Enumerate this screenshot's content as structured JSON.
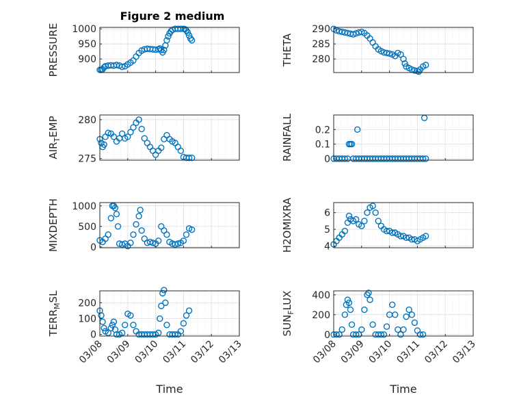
{
  "figure": {
    "title": "Figure 2 medium"
  },
  "chart_data": [
    {
      "type": "scatter",
      "title": "Figure 2 medium",
      "ylabel": "PRESSURE",
      "xlabel": "",
      "ylim": [
        855,
        1005
      ],
      "yticks": [
        900,
        950,
        1000
      ],
      "xlim": [
        0,
        5
      ],
      "xtick_labels": [
        "03/08",
        "03/09",
        "03/10",
        "03/11",
        "03/12",
        "03/13"
      ],
      "grid": true,
      "marker_color": "#0072BD",
      "values": [
        [
          0.0,
          864
        ],
        [
          0.05,
          864
        ],
        [
          0.1,
          866
        ],
        [
          0.15,
          872
        ],
        [
          0.2,
          876
        ],
        [
          0.3,
          878
        ],
        [
          0.4,
          879
        ],
        [
          0.5,
          878
        ],
        [
          0.6,
          880
        ],
        [
          0.7,
          878
        ],
        [
          0.8,
          874
        ],
        [
          0.9,
          876
        ],
        [
          1.0,
          882
        ],
        [
          1.1,
          888
        ],
        [
          1.2,
          895
        ],
        [
          1.3,
          908
        ],
        [
          1.4,
          920
        ],
        [
          1.5,
          928
        ],
        [
          1.6,
          932
        ],
        [
          1.7,
          934
        ],
        [
          1.8,
          933
        ],
        [
          1.9,
          932
        ],
        [
          2.0,
          931
        ],
        [
          2.1,
          932
        ],
        [
          2.15,
          935
        ],
        [
          2.2,
          930
        ],
        [
          2.25,
          922
        ],
        [
          2.3,
          930
        ],
        [
          2.35,
          945
        ],
        [
          2.4,
          962
        ],
        [
          2.45,
          975
        ],
        [
          2.5,
          985
        ],
        [
          2.55,
          992
        ],
        [
          2.6,
          997
        ],
        [
          2.7,
          1000
        ],
        [
          2.8,
          1000
        ],
        [
          2.9,
          1000
        ],
        [
          3.0,
          1000
        ],
        [
          3.05,
          999
        ],
        [
          3.1,
          995
        ],
        [
          3.15,
          988
        ],
        [
          3.2,
          978
        ],
        [
          3.25,
          968
        ],
        [
          3.3,
          962
        ]
      ]
    },
    {
      "type": "scatter",
      "ylabel": "THETA",
      "xlabel": "",
      "ylim": [
        275.5,
        290.5
      ],
      "yticks": [
        280,
        285,
        290
      ],
      "xlim": [
        0,
        5
      ],
      "xtick_labels": [
        "03/08",
        "03/09",
        "03/10",
        "03/11",
        "03/12",
        "03/13"
      ],
      "grid": true,
      "marker_color": "#0072BD",
      "values": [
        [
          0.0,
          290
        ],
        [
          0.1,
          289.5
        ],
        [
          0.2,
          289.2
        ],
        [
          0.3,
          289
        ],
        [
          0.4,
          288.8
        ],
        [
          0.5,
          288.6
        ],
        [
          0.6,
          288.4
        ],
        [
          0.7,
          288.2
        ],
        [
          0.8,
          288.5
        ],
        [
          0.9,
          288.8
        ],
        [
          1.0,
          289
        ],
        [
          1.1,
          288.6
        ],
        [
          1.2,
          287.8
        ],
        [
          1.3,
          286.8
        ],
        [
          1.4,
          285.5
        ],
        [
          1.5,
          284.2
        ],
        [
          1.6,
          283.2
        ],
        [
          1.7,
          282.6
        ],
        [
          1.8,
          282.2
        ],
        [
          1.9,
          282
        ],
        [
          2.0,
          281.8
        ],
        [
          2.1,
          281.5
        ],
        [
          2.2,
          281
        ],
        [
          2.3,
          282
        ],
        [
          2.4,
          281.5
        ],
        [
          2.5,
          280
        ],
        [
          2.55,
          278.5
        ],
        [
          2.6,
          277.5
        ],
        [
          2.7,
          277
        ],
        [
          2.8,
          276.5
        ],
        [
          2.9,
          276.2
        ],
        [
          3.0,
          276
        ],
        [
          3.05,
          275.8
        ],
        [
          3.1,
          276.5
        ],
        [
          3.2,
          277.5
        ],
        [
          3.3,
          278
        ]
      ]
    },
    {
      "type": "scatter",
      "ylabel": "AIR_TEMP",
      "xlabel": "",
      "ylim": [
        274.8,
        280.6
      ],
      "yticks": [
        275,
        280
      ],
      "xlim": [
        0,
        5
      ],
      "xtick_labels": [
        "03/08",
        "03/09",
        "03/10",
        "03/11",
        "03/12",
        "03/13"
      ],
      "grid": true,
      "marker_color": "#0072BD",
      "values": [
        [
          0.0,
          277.5
        ],
        [
          0.05,
          277
        ],
        [
          0.1,
          276.5
        ],
        [
          0.15,
          276.8
        ],
        [
          0.2,
          277.8
        ],
        [
          0.3,
          278.3
        ],
        [
          0.4,
          278.2
        ],
        [
          0.5,
          277.8
        ],
        [
          0.6,
          277.2
        ],
        [
          0.7,
          277.6
        ],
        [
          0.8,
          278.2
        ],
        [
          0.9,
          277.6
        ],
        [
          1.0,
          277.8
        ],
        [
          1.1,
          278.4
        ],
        [
          1.2,
          279
        ],
        [
          1.3,
          279.6
        ],
        [
          1.4,
          280
        ],
        [
          1.5,
          278.8
        ],
        [
          1.6,
          277.6
        ],
        [
          1.7,
          277
        ],
        [
          1.8,
          276.5
        ],
        [
          1.9,
          276
        ],
        [
          2.0,
          275.5
        ],
        [
          2.1,
          276
        ],
        [
          2.2,
          276.4
        ],
        [
          2.3,
          277.5
        ],
        [
          2.4,
          278
        ],
        [
          2.5,
          277.5
        ],
        [
          2.6,
          277.2
        ],
        [
          2.7,
          277
        ],
        [
          2.8,
          276.5
        ],
        [
          2.9,
          276
        ],
        [
          3.0,
          275.2
        ],
        [
          3.1,
          275.1
        ],
        [
          3.2,
          275.1
        ],
        [
          3.3,
          275.1
        ]
      ]
    },
    {
      "type": "scatter",
      "ylabel": "RAINFALL",
      "xlabel": "",
      "ylim": [
        -0.01,
        0.3
      ],
      "yticks": [
        0,
        0.1,
        0.2
      ],
      "xlim": [
        0,
        5
      ],
      "xtick_labels": [
        "03/08",
        "03/09",
        "03/10",
        "03/11",
        "03/12",
        "03/13"
      ],
      "grid": true,
      "marker_color": "#0072BD",
      "values": [
        [
          0.0,
          0
        ],
        [
          0.1,
          0
        ],
        [
          0.2,
          0
        ],
        [
          0.3,
          0
        ],
        [
          0.4,
          0
        ],
        [
          0.5,
          0
        ],
        [
          0.55,
          0.1
        ],
        [
          0.6,
          0.1
        ],
        [
          0.65,
          0.1
        ],
        [
          0.7,
          0
        ],
        [
          0.8,
          0
        ],
        [
          0.9,
          0
        ],
        [
          0.85,
          0.2
        ],
        [
          1.0,
          0
        ],
        [
          1.1,
          0
        ],
        [
          1.2,
          0
        ],
        [
          1.3,
          0
        ],
        [
          1.4,
          0
        ],
        [
          1.5,
          0
        ],
        [
          1.6,
          0
        ],
        [
          1.7,
          0
        ],
        [
          1.8,
          0
        ],
        [
          1.9,
          0
        ],
        [
          2.0,
          0
        ],
        [
          2.1,
          0
        ],
        [
          2.2,
          0
        ],
        [
          2.3,
          0
        ],
        [
          2.4,
          0
        ],
        [
          2.5,
          0
        ],
        [
          2.6,
          0
        ],
        [
          2.7,
          0
        ],
        [
          2.8,
          0
        ],
        [
          2.9,
          0
        ],
        [
          3.0,
          0
        ],
        [
          3.1,
          0
        ],
        [
          3.2,
          0
        ],
        [
          3.25,
          0.28
        ],
        [
          3.3,
          0
        ]
      ]
    },
    {
      "type": "scatter",
      "ylabel": "MIXDEPTH",
      "xlabel": "",
      "ylim": [
        -20,
        1080
      ],
      "yticks": [
        0,
        500,
        1000
      ],
      "xlim": [
        0,
        5
      ],
      "xtick_labels": [
        "03/08",
        "03/09",
        "03/10",
        "03/11",
        "03/12",
        "03/13"
      ],
      "grid": true,
      "marker_color": "#0072BD",
      "values": [
        [
          0.0,
          160
        ],
        [
          0.1,
          120
        ],
        [
          0.2,
          200
        ],
        [
          0.3,
          300
        ],
        [
          0.4,
          700
        ],
        [
          0.45,
          1000
        ],
        [
          0.5,
          1000
        ],
        [
          0.55,
          950
        ],
        [
          0.6,
          800
        ],
        [
          0.65,
          500
        ],
        [
          0.7,
          80
        ],
        [
          0.8,
          60
        ],
        [
          0.9,
          80
        ],
        [
          1.0,
          20
        ],
        [
          1.1,
          100
        ],
        [
          1.2,
          300
        ],
        [
          1.3,
          550
        ],
        [
          1.4,
          750
        ],
        [
          1.45,
          900
        ],
        [
          1.5,
          400
        ],
        [
          1.6,
          200
        ],
        [
          1.7,
          100
        ],
        [
          1.8,
          120
        ],
        [
          1.9,
          100
        ],
        [
          2.0,
          80
        ],
        [
          2.1,
          150
        ],
        [
          2.2,
          500
        ],
        [
          2.3,
          400
        ],
        [
          2.4,
          300
        ],
        [
          2.5,
          120
        ],
        [
          2.6,
          80
        ],
        [
          2.7,
          60
        ],
        [
          2.8,
          80
        ],
        [
          2.9,
          100
        ],
        [
          3.0,
          150
        ],
        [
          3.1,
          300
        ],
        [
          3.2,
          450
        ],
        [
          3.3,
          420
        ]
      ]
    },
    {
      "type": "scatter",
      "ylabel": "H2OMIXRA",
      "xlabel": "",
      "ylim": [
        3.9,
        6.6
      ],
      "yticks": [
        4,
        5,
        6
      ],
      "xlim": [
        0,
        5
      ],
      "xtick_labels": [
        "03/08",
        "03/09",
        "03/10",
        "03/11",
        "03/12",
        "03/13"
      ],
      "grid": true,
      "marker_color": "#0072BD",
      "values": [
        [
          0.0,
          4.1
        ],
        [
          0.1,
          4.3
        ],
        [
          0.2,
          4.5
        ],
        [
          0.3,
          4.7
        ],
        [
          0.4,
          4.9
        ],
        [
          0.5,
          5.4
        ],
        [
          0.55,
          5.8
        ],
        [
          0.6,
          5.6
        ],
        [
          0.7,
          5.5
        ],
        [
          0.8,
          5.6
        ],
        [
          0.9,
          5.3
        ],
        [
          1.0,
          5.2
        ],
        [
          1.1,
          5.5
        ],
        [
          1.2,
          6.0
        ],
        [
          1.3,
          6.3
        ],
        [
          1.4,
          6.4
        ],
        [
          1.5,
          6.0
        ],
        [
          1.6,
          5.5
        ],
        [
          1.7,
          5.2
        ],
        [
          1.8,
          5.0
        ],
        [
          1.9,
          4.9
        ],
        [
          2.0,
          4.9
        ],
        [
          2.1,
          4.8
        ],
        [
          2.2,
          4.8
        ],
        [
          2.3,
          4.7
        ],
        [
          2.4,
          4.6
        ],
        [
          2.5,
          4.6
        ],
        [
          2.6,
          4.5
        ],
        [
          2.7,
          4.5
        ],
        [
          2.8,
          4.4
        ],
        [
          2.9,
          4.4
        ],
        [
          3.0,
          4.3
        ],
        [
          3.1,
          4.4
        ],
        [
          3.2,
          4.5
        ],
        [
          3.3,
          4.6
        ]
      ]
    },
    {
      "type": "scatter",
      "ylabel": "TERR_MSL",
      "xlabel": "Time",
      "ylim": [
        -10,
        275
      ],
      "yticks": [
        0,
        100,
        200
      ],
      "xlim": [
        0,
        5
      ],
      "xtick_labels": [
        "03/08",
        "03/09",
        "03/10",
        "03/11",
        "03/12",
        "03/13"
      ],
      "grid": true,
      "marker_color": "#0072BD",
      "values": [
        [
          0.0,
          150
        ],
        [
          0.05,
          120
        ],
        [
          0.1,
          80
        ],
        [
          0.15,
          40
        ],
        [
          0.2,
          20
        ],
        [
          0.3,
          10
        ],
        [
          0.4,
          40
        ],
        [
          0.45,
          60
        ],
        [
          0.5,
          80
        ],
        [
          0.55,
          30
        ],
        [
          0.6,
          0
        ],
        [
          0.7,
          0
        ],
        [
          0.8,
          10
        ],
        [
          0.9,
          60
        ],
        [
          1.0,
          130
        ],
        [
          1.1,
          120
        ],
        [
          1.2,
          60
        ],
        [
          1.3,
          20
        ],
        [
          1.4,
          0
        ],
        [
          1.5,
          0
        ],
        [
          1.6,
          0
        ],
        [
          1.7,
          0
        ],
        [
          1.8,
          0
        ],
        [
          1.9,
          0
        ],
        [
          2.0,
          0
        ],
        [
          2.1,
          10
        ],
        [
          2.15,
          100
        ],
        [
          2.2,
          180
        ],
        [
          2.25,
          260
        ],
        [
          2.3,
          280
        ],
        [
          2.35,
          200
        ],
        [
          2.4,
          60
        ],
        [
          2.5,
          0
        ],
        [
          2.6,
          0
        ],
        [
          2.7,
          0
        ],
        [
          2.8,
          0
        ],
        [
          2.9,
          20
        ],
        [
          3.0,
          70
        ],
        [
          3.1,
          120
        ],
        [
          3.2,
          150
        ]
      ]
    },
    {
      "type": "scatter",
      "ylabel": "SUN_FLUX",
      "xlabel": "Time",
      "ylim": [
        -15,
        440
      ],
      "yticks": [
        0,
        200,
        400
      ],
      "xlim": [
        0,
        5
      ],
      "xtick_labels": [
        "03/08",
        "03/09",
        "03/10",
        "03/11",
        "03/12",
        "03/13"
      ],
      "grid": true,
      "marker_color": "#0072BD",
      "values": [
        [
          0.0,
          0
        ],
        [
          0.1,
          0
        ],
        [
          0.2,
          0
        ],
        [
          0.3,
          50
        ],
        [
          0.4,
          200
        ],
        [
          0.45,
          300
        ],
        [
          0.5,
          350
        ],
        [
          0.55,
          320
        ],
        [
          0.6,
          250
        ],
        [
          0.65,
          100
        ],
        [
          0.7,
          0
        ],
        [
          0.8,
          0
        ],
        [
          0.9,
          0
        ],
        [
          1.0,
          50
        ],
        [
          1.1,
          250
        ],
        [
          1.2,
          400
        ],
        [
          1.25,
          420
        ],
        [
          1.3,
          350
        ],
        [
          1.4,
          100
        ],
        [
          1.5,
          0
        ],
        [
          1.6,
          0
        ],
        [
          1.7,
          0
        ],
        [
          1.8,
          0
        ],
        [
          1.9,
          80
        ],
        [
          2.0,
          200
        ],
        [
          2.1,
          300
        ],
        [
          2.2,
          200
        ],
        [
          2.3,
          50
        ],
        [
          2.4,
          0
        ],
        [
          2.5,
          50
        ],
        [
          2.6,
          180
        ],
        [
          2.7,
          250
        ],
        [
          2.8,
          200
        ],
        [
          2.9,
          120
        ],
        [
          3.0,
          40
        ],
        [
          3.1,
          0
        ],
        [
          3.2,
          0
        ]
      ]
    }
  ]
}
